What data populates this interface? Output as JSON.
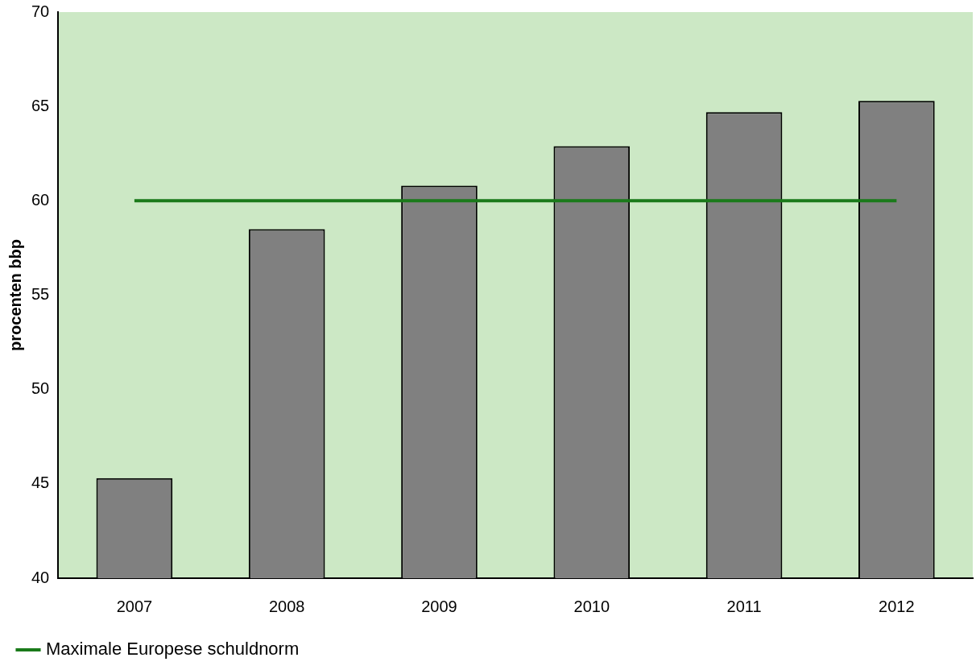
{
  "chart_data": {
    "type": "bar",
    "categories": [
      "2007",
      "2008",
      "2009",
      "2010",
      "2011",
      "2012"
    ],
    "y_label": "procenten bbp",
    "series": [
      {
        "type": "bar",
        "color": "#808080",
        "values": [
          45.3,
          58.5,
          60.8,
          62.9,
          64.7,
          65.3
        ]
      },
      {
        "type": "line",
        "name": "Maximale Europese schuldnorm",
        "color": "#1a7a1a",
        "values": [
          60,
          60,
          60,
          60,
          60,
          60
        ]
      }
    ],
    "ylim": [
      40,
      70
    ],
    "yticks": [
      40,
      45,
      50,
      55,
      60,
      65,
      70
    ],
    "grid": false,
    "legend": "bottom-left"
  }
}
